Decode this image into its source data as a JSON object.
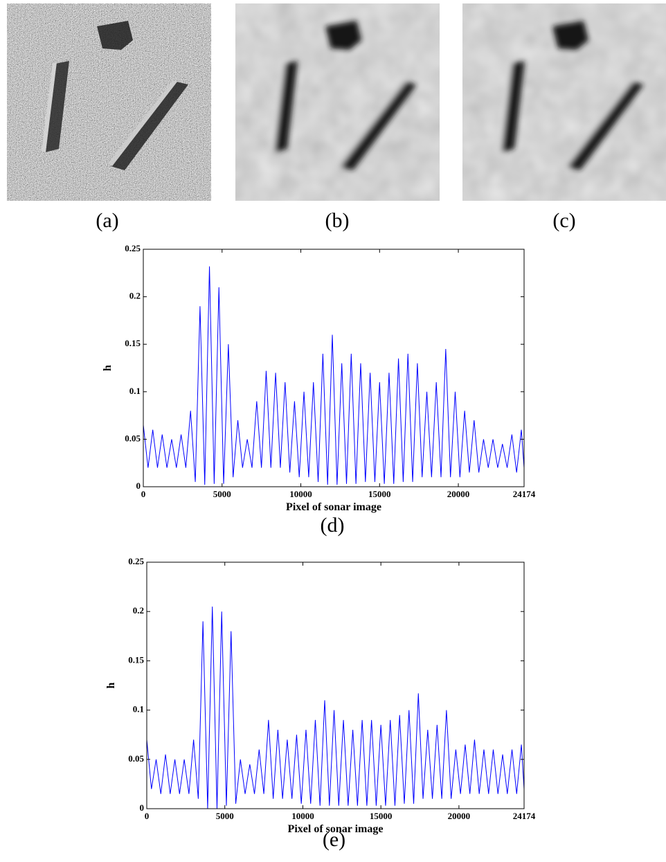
{
  "panels": [
    "(a)",
    "(b)",
    "(c)"
  ],
  "chart_data": [
    {
      "type": "line",
      "caption": "(d)",
      "xlabel": "Pixel of sonar image",
      "ylabel": "h",
      "xlim": [
        0,
        24174
      ],
      "xticks": [
        0,
        5000,
        10000,
        15000,
        20000,
        24174
      ],
      "ylim": [
        0,
        0.25
      ],
      "yticks": [
        0,
        0.05,
        0.1,
        0.15,
        0.2,
        0.25
      ],
      "x": [
        0,
        300,
        600,
        900,
        1200,
        1500,
        1800,
        2100,
        2400,
        2700,
        3000,
        3300,
        3600,
        3900,
        4200,
        4500,
        4800,
        5100,
        5400,
        5700,
        6000,
        6300,
        6600,
        6900,
        7200,
        7500,
        7800,
        8100,
        8400,
        8700,
        9000,
        9300,
        9600,
        9900,
        10200,
        10500,
        10800,
        11100,
        11400,
        11700,
        12000,
        12300,
        12600,
        12900,
        13200,
        13500,
        13800,
        14100,
        14400,
        14700,
        15000,
        15300,
        15600,
        15900,
        16200,
        16500,
        16800,
        17100,
        17400,
        17700,
        18000,
        18300,
        18600,
        18900,
        19200,
        19500,
        19800,
        20100,
        20400,
        20700,
        21000,
        21300,
        21600,
        21900,
        22200,
        22500,
        22800,
        23100,
        23400,
        23700,
        24000,
        24174
      ],
      "series": [
        {
          "color": "#0000ff",
          "values": [
            0.065,
            0.02,
            0.06,
            0.02,
            0.055,
            0.02,
            0.05,
            0.02,
            0.055,
            0.02,
            0.08,
            0.005,
            0.19,
            0.002,
            0.232,
            0.003,
            0.21,
            0.003,
            0.15,
            0.01,
            0.07,
            0.02,
            0.05,
            0.02,
            0.09,
            0.02,
            0.122,
            0.02,
            0.12,
            0.02,
            0.11,
            0.015,
            0.09,
            0.01,
            0.1,
            0.01,
            0.11,
            0.005,
            0.14,
            0.002,
            0.16,
            0.002,
            0.13,
            0.003,
            0.14,
            0.003,
            0.13,
            0.005,
            0.12,
            0.005,
            0.11,
            0.003,
            0.12,
            0.003,
            0.135,
            0.005,
            0.14,
            0.005,
            0.13,
            0.01,
            0.1,
            0.01,
            0.11,
            0.01,
            0.145,
            0.01,
            0.1,
            0.01,
            0.08,
            0.015,
            0.07,
            0.015,
            0.05,
            0.02,
            0.05,
            0.02,
            0.045,
            0.02,
            0.055,
            0.015,
            0.06,
            0.02
          ]
        }
      ]
    },
    {
      "type": "line",
      "caption": "(e)",
      "xlabel": "Pixel of sonar image",
      "ylabel": "h",
      "xlim": [
        0,
        24174
      ],
      "xticks": [
        0,
        5000,
        10000,
        15000,
        20000,
        24174
      ],
      "ylim": [
        0,
        0.25
      ],
      "yticks": [
        0,
        0.05,
        0.1,
        0.15,
        0.2,
        0.25
      ],
      "x": [
        0,
        300,
        600,
        900,
        1200,
        1500,
        1800,
        2100,
        2400,
        2700,
        3000,
        3300,
        3600,
        3900,
        4200,
        4500,
        4800,
        5100,
        5400,
        5700,
        6000,
        6300,
        6600,
        6900,
        7200,
        7500,
        7800,
        8100,
        8400,
        8700,
        9000,
        9300,
        9600,
        9900,
        10200,
        10500,
        10800,
        11100,
        11400,
        11700,
        12000,
        12300,
        12600,
        12900,
        13200,
        13500,
        13800,
        14100,
        14400,
        14700,
        15000,
        15300,
        15600,
        15900,
        16200,
        16500,
        16800,
        17100,
        17400,
        17700,
        18000,
        18300,
        18600,
        18900,
        19200,
        19500,
        19800,
        20100,
        20400,
        20700,
        21000,
        21300,
        21600,
        21900,
        22200,
        22500,
        22800,
        23100,
        23400,
        23700,
        24000,
        24174
      ],
      "series": [
        {
          "color": "#0000ff",
          "values": [
            0.07,
            0.02,
            0.05,
            0.015,
            0.055,
            0.015,
            0.05,
            0.015,
            0.05,
            0.015,
            0.07,
            0.01,
            0.19,
            0.0,
            0.205,
            0.0,
            0.2,
            0.003,
            0.18,
            0.005,
            0.05,
            0.015,
            0.045,
            0.015,
            0.06,
            0.015,
            0.09,
            0.01,
            0.08,
            0.01,
            0.07,
            0.01,
            0.075,
            0.005,
            0.08,
            0.005,
            0.09,
            0.003,
            0.11,
            0.003,
            0.1,
            0.003,
            0.09,
            0.003,
            0.08,
            0.003,
            0.09,
            0.003,
            0.09,
            0.003,
            0.085,
            0.003,
            0.09,
            0.003,
            0.095,
            0.005,
            0.1,
            0.005,
            0.117,
            0.01,
            0.08,
            0.01,
            0.085,
            0.01,
            0.1,
            0.01,
            0.06,
            0.015,
            0.065,
            0.015,
            0.07,
            0.015,
            0.06,
            0.015,
            0.06,
            0.015,
            0.055,
            0.015,
            0.06,
            0.015,
            0.065,
            0.02
          ]
        }
      ]
    }
  ]
}
